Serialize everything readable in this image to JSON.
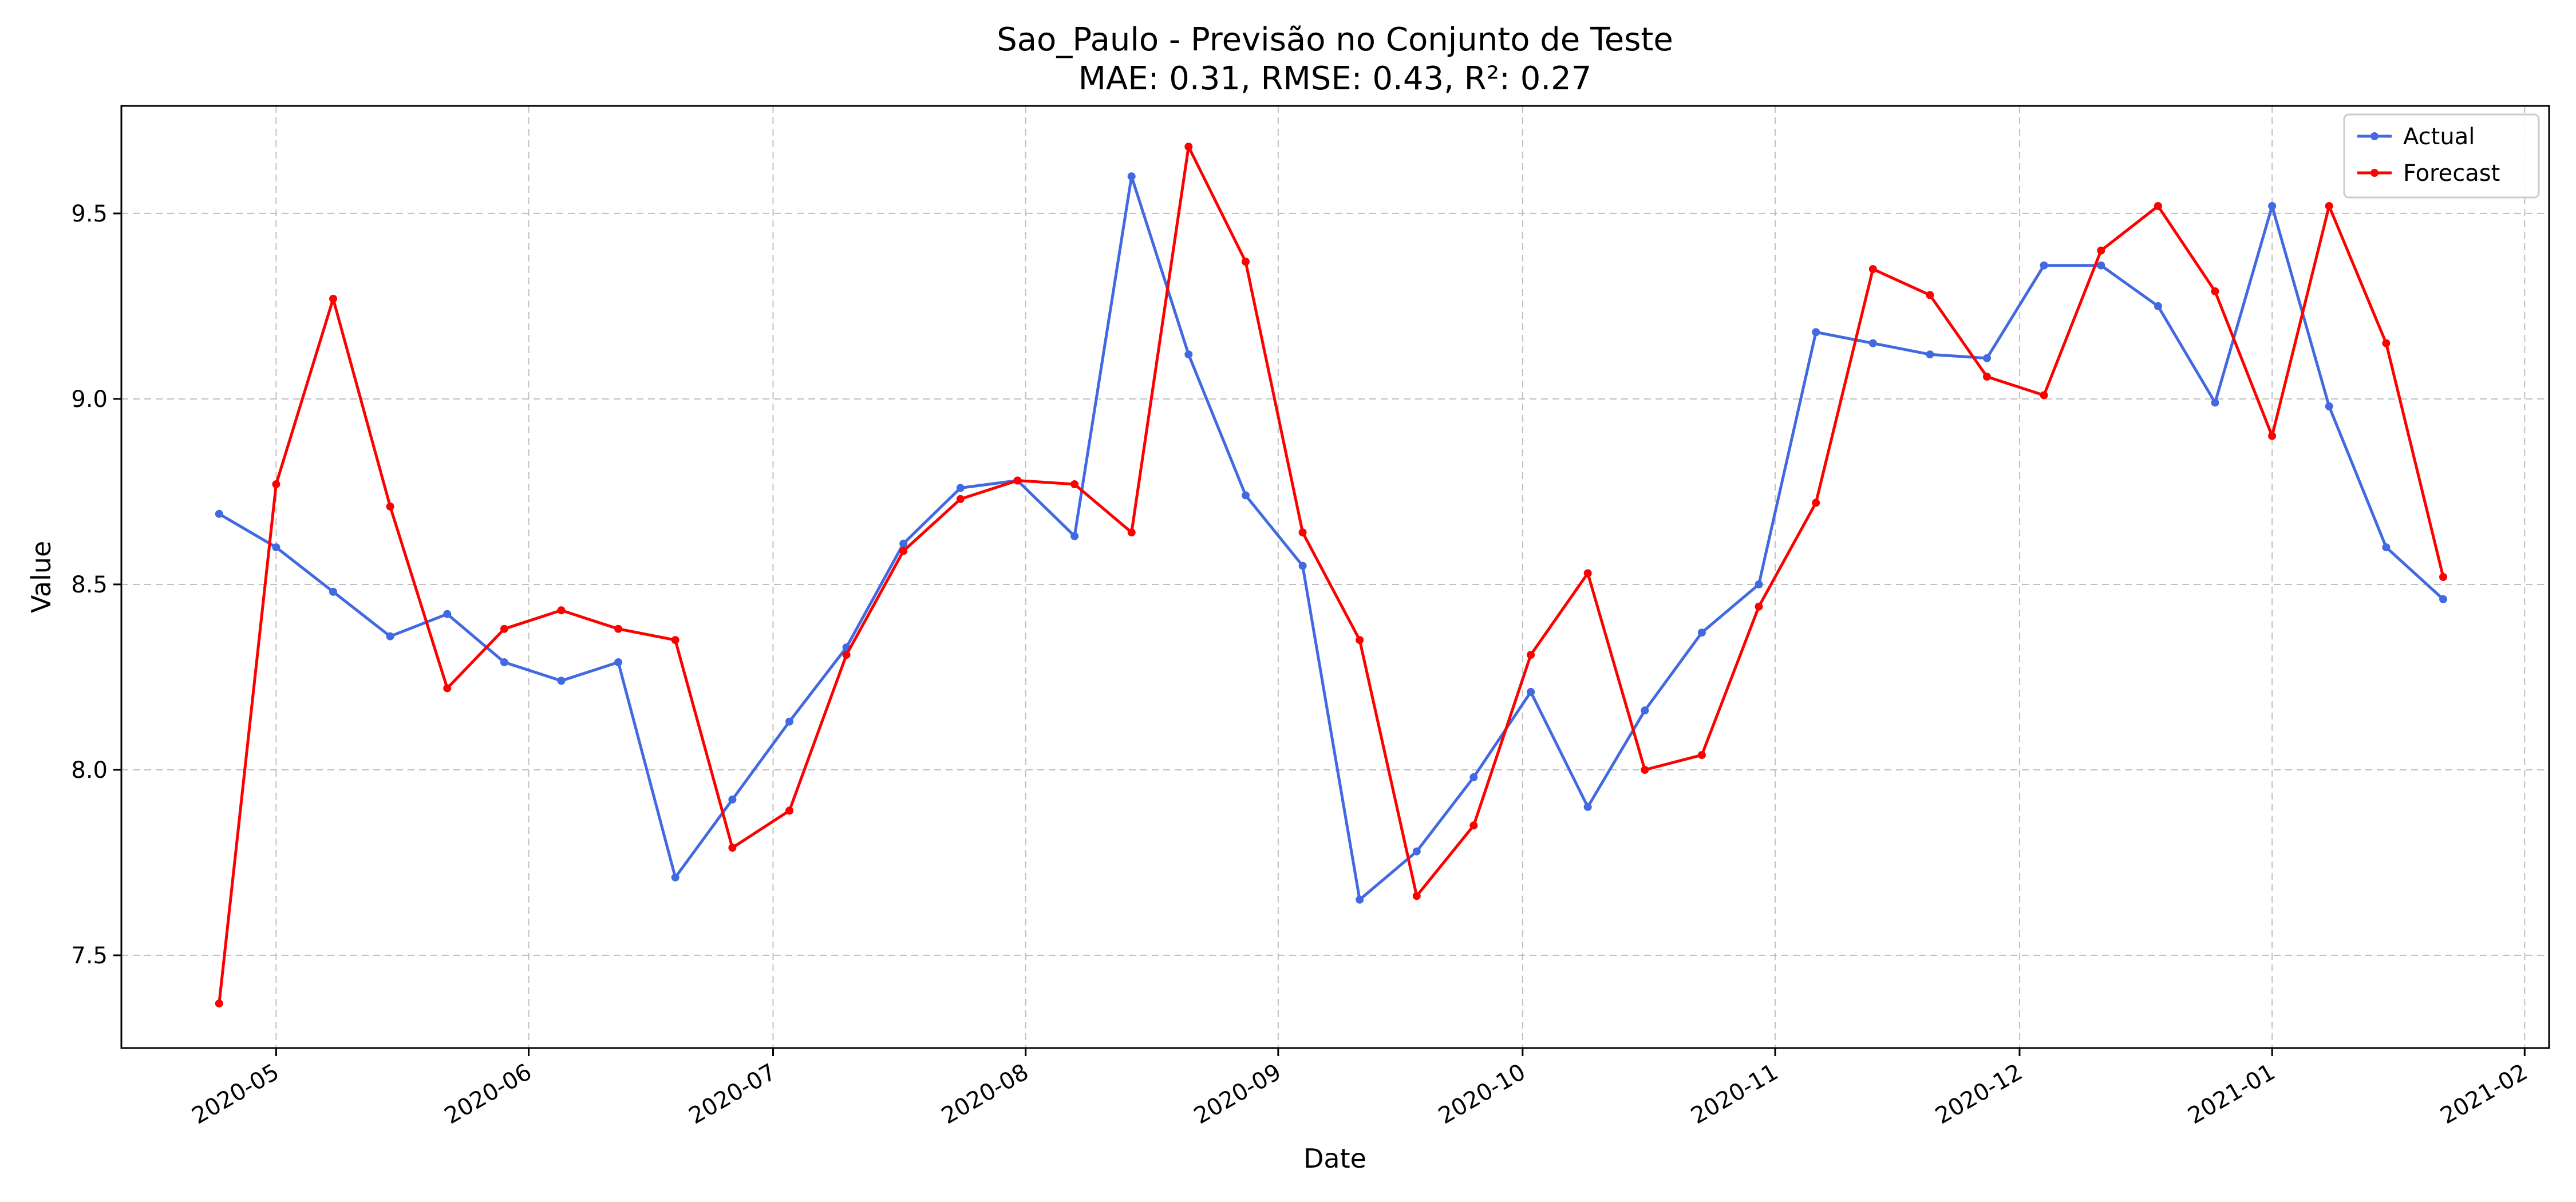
{
  "chart_data": {
    "type": "line",
    "title": "Sao_Paulo - Previsão no Conjunto de Teste",
    "subtitle": "MAE: 0.31, RMSE: 0.43, R²: 0.27",
    "xlabel": "Date",
    "ylabel": "Value",
    "x": [
      "2020-04-24",
      "2020-05-01",
      "2020-05-08",
      "2020-05-15",
      "2020-05-22",
      "2020-05-29",
      "2020-06-05",
      "2020-06-12",
      "2020-06-19",
      "2020-06-26",
      "2020-07-03",
      "2020-07-10",
      "2020-07-17",
      "2020-07-24",
      "2020-07-31",
      "2020-08-07",
      "2020-08-14",
      "2020-08-21",
      "2020-08-28",
      "2020-09-04",
      "2020-09-11",
      "2020-09-18",
      "2020-09-25",
      "2020-10-02",
      "2020-10-09",
      "2020-10-16",
      "2020-10-23",
      "2020-10-30",
      "2020-11-06",
      "2020-11-13",
      "2020-11-20",
      "2020-11-27",
      "2020-12-04",
      "2020-12-11",
      "2020-12-18",
      "2020-12-25",
      "2021-01-01",
      "2021-01-08",
      "2021-01-15",
      "2021-01-22"
    ],
    "series": [
      {
        "name": "Actual",
        "color": "#4169e1",
        "values": [
          8.69,
          8.6,
          8.48,
          8.36,
          8.42,
          8.29,
          8.24,
          8.29,
          7.71,
          7.92,
          8.13,
          8.33,
          8.61,
          8.76,
          8.78,
          8.63,
          9.6,
          9.12,
          8.74,
          8.55,
          7.65,
          7.78,
          7.98,
          8.21,
          7.9,
          8.16,
          8.37,
          8.5,
          9.18,
          9.15,
          9.12,
          9.11,
          9.36,
          9.36,
          9.25,
          8.99,
          9.52,
          8.98,
          8.6,
          8.46
        ]
      },
      {
        "name": "Forecast",
        "color": "#ff0000",
        "values": [
          7.37,
          8.77,
          9.27,
          8.71,
          8.22,
          8.38,
          8.43,
          8.38,
          8.35,
          7.79,
          7.89,
          8.31,
          8.59,
          8.73,
          8.78,
          8.77,
          8.64,
          9.68,
          9.37,
          8.64,
          8.35,
          7.66,
          7.85,
          8.31,
          8.53,
          8.0,
          8.04,
          8.44,
          8.72,
          9.35,
          9.28,
          9.06,
          9.01,
          9.4,
          9.52,
          9.29,
          8.9,
          9.52,
          9.15,
          8.52
        ]
      }
    ],
    "xticks": [
      "2020-05",
      "2020-06",
      "2020-07",
      "2020-08",
      "2020-09",
      "2020-10",
      "2020-11",
      "2020-12",
      "2021-01",
      "2021-02"
    ],
    "yticks": [
      "7.5",
      "8.0",
      "8.5",
      "9.0",
      "9.5"
    ],
    "xlim": [
      "2020-04-12",
      "2021-02-04"
    ],
    "ylim": [
      7.25,
      9.79
    ],
    "grid": true,
    "legend_position": "top-right"
  }
}
